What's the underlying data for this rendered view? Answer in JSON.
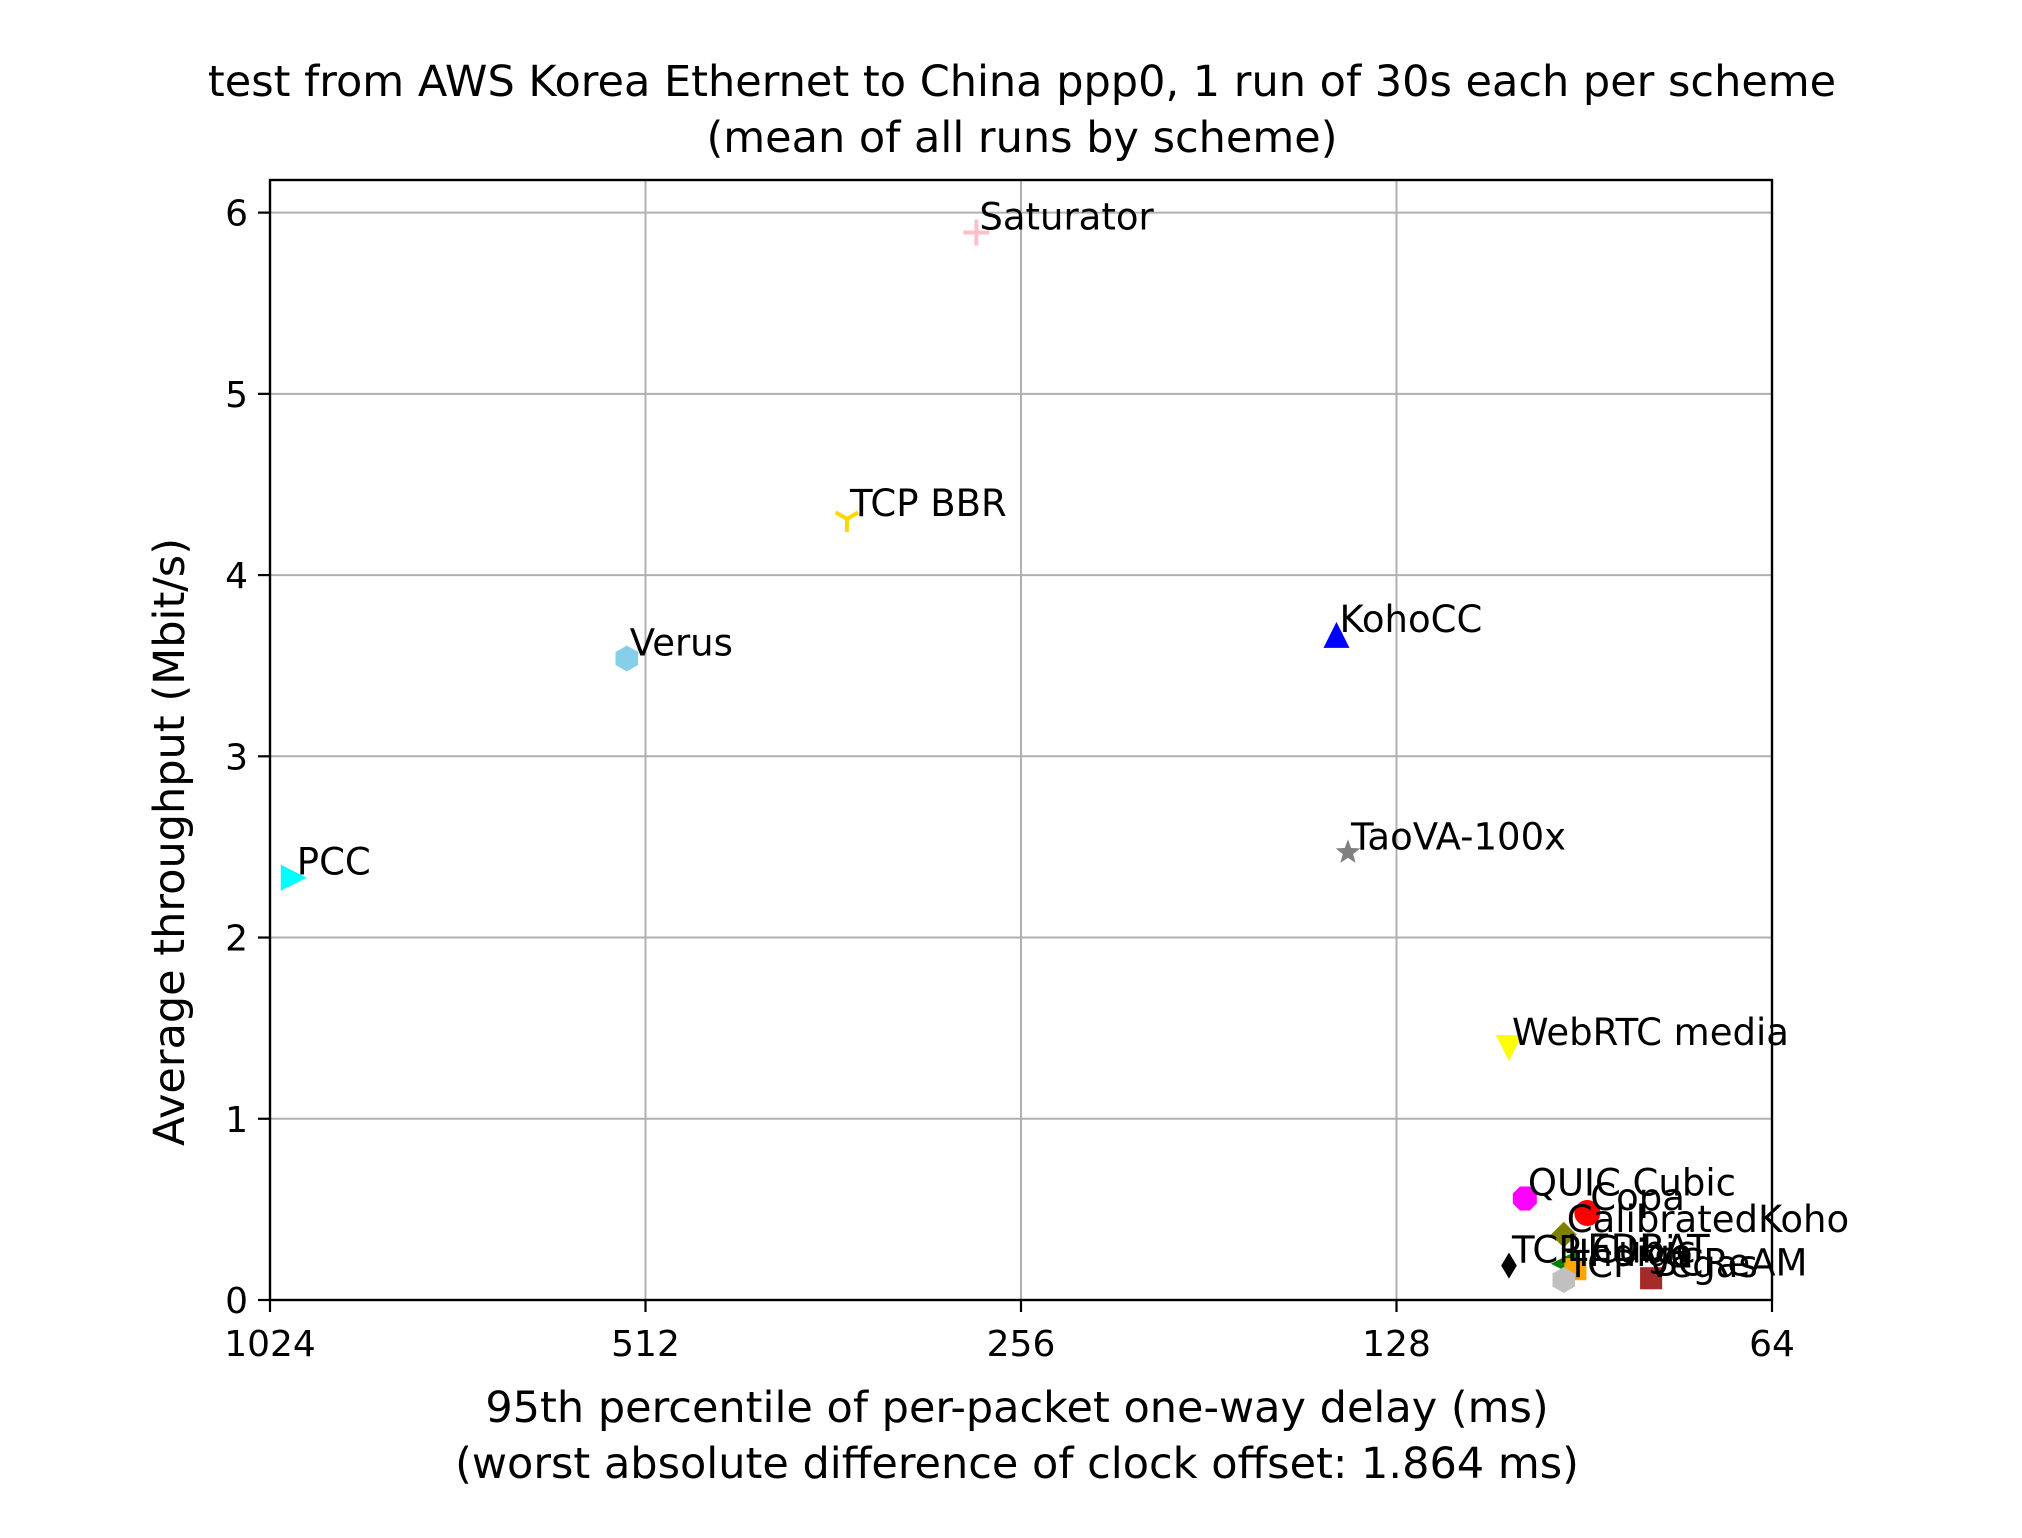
{
  "chart_data": {
    "type": "scatter",
    "title": "test from AWS Korea Ethernet to China ppp0, 1 run of 30s each per scheme",
    "subtitle": "(mean of all runs by scheme)",
    "xlabel": "95th percentile of per-packet one-way delay (ms)",
    "xlabel_sub": "(worst absolute difference of clock offset: 1.864 ms)",
    "ylabel": "Average throughput (Mbit/s)",
    "x_scale": "log2",
    "x_inverted": true,
    "xlim": [
      64,
      1024
    ],
    "ylim": [
      0,
      6.18
    ],
    "x_ticks": [
      1024,
      512,
      256,
      128,
      64
    ],
    "x_tick_labels": [
      "1024",
      "512",
      "256",
      "128",
      "64"
    ],
    "y_ticks": [
      0,
      1,
      2,
      3,
      4,
      5,
      6
    ],
    "y_tick_labels": [
      "0",
      "1",
      "2",
      "3",
      "4",
      "5",
      "6"
    ],
    "grid": true,
    "series": [
      {
        "name": "Saturator",
        "x": 278,
        "y": 5.89,
        "marker": "plus",
        "color": "#ffc0cb"
      },
      {
        "name": "TCP BBR",
        "x": 353,
        "y": 4.31,
        "marker": "tri-down",
        "color": "#ffd700"
      },
      {
        "name": "Verus",
        "x": 530,
        "y": 3.54,
        "marker": "hexagon",
        "color": "#87ceeb"
      },
      {
        "name": "KohoCC",
        "x": 143,
        "y": 3.67,
        "marker": "triangle-up",
        "color": "#0000ff"
      },
      {
        "name": "PCC",
        "x": 980,
        "y": 2.33,
        "marker": "triangle-right",
        "color": "#00ffff"
      },
      {
        "name": "TaoVA-100x",
        "x": 140,
        "y": 2.47,
        "marker": "star",
        "color": "#808080"
      },
      {
        "name": "WebRTC media",
        "x": 104,
        "y": 1.39,
        "marker": "triangle-down",
        "color": "#ffff00"
      },
      {
        "name": "QUIC Cubic",
        "x": 101,
        "y": 0.56,
        "marker": "octagon",
        "color": "#ff00ff"
      },
      {
        "name": "Copa",
        "x": 90,
        "y": 0.48,
        "marker": "circle",
        "color": "#ff0000"
      },
      {
        "name": "CalibratedKoho",
        "x": 94,
        "y": 0.36,
        "marker": "diamond",
        "color": "#808000"
      },
      {
        "name": "TCP Cubic",
        "x": 104,
        "y": 0.19,
        "marker": "thin-diamond",
        "color": "#000000"
      },
      {
        "name": "LEDBAT",
        "x": 94,
        "y": 0.2,
        "marker": "triangle-left",
        "color": "#008000"
      },
      {
        "name": "Indigo",
        "x": 92,
        "y": 0.17,
        "marker": "square",
        "color": "#ffa500"
      },
      {
        "name": "SCReAM",
        "x": 80,
        "y": 0.12,
        "marker": "square",
        "color": "#a52a2a"
      },
      {
        "name": "TCP Vegas",
        "x": 94,
        "y": 0.11,
        "marker": "hexagon",
        "color": "#c0c0c0"
      }
    ]
  }
}
